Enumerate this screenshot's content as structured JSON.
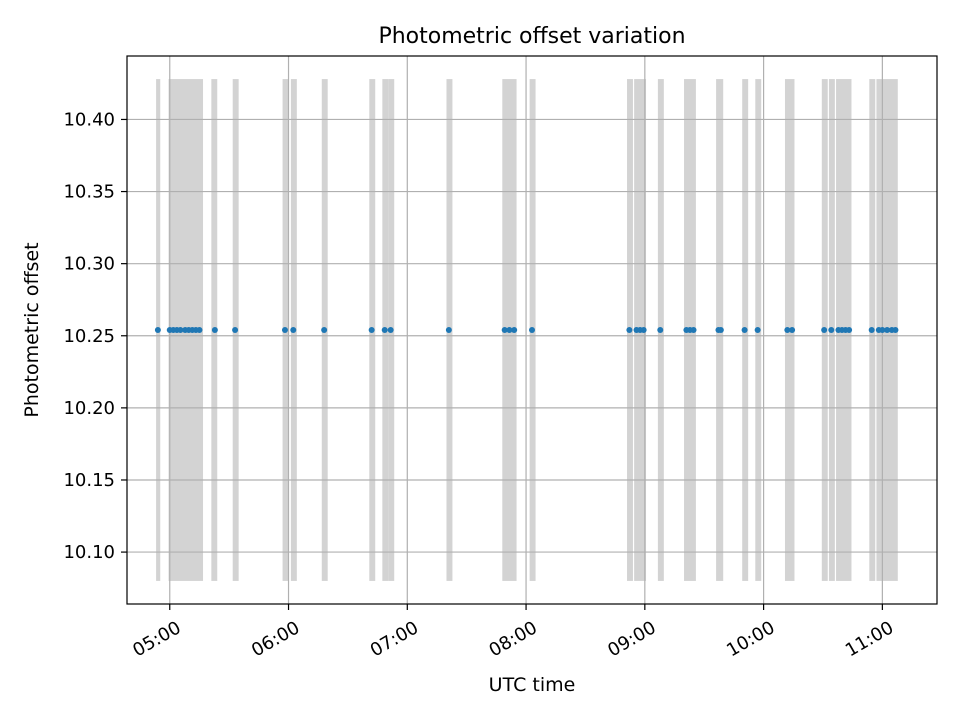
{
  "chart_data": {
    "type": "scatter",
    "title": "Photometric offset variation",
    "xlabel": "UTC time",
    "ylabel": "Photometric offset",
    "x_unit": "hours UTC",
    "xlim": [
      4.64,
      11.46
    ],
    "ylim": [
      10.064,
      10.444
    ],
    "grid": true,
    "x_ticks": [
      {
        "value": 5,
        "label": "05:00"
      },
      {
        "value": 6,
        "label": "06:00"
      },
      {
        "value": 7,
        "label": "07:00"
      },
      {
        "value": 8,
        "label": "08:00"
      },
      {
        "value": 9,
        "label": "09:00"
      },
      {
        "value": 10,
        "label": "10:00"
      },
      {
        "value": 11,
        "label": "11:00"
      }
    ],
    "y_ticks": [
      {
        "value": 10.1,
        "label": "10.10"
      },
      {
        "value": 10.15,
        "label": "10.15"
      },
      {
        "value": 10.2,
        "label": "10.20"
      },
      {
        "value": 10.25,
        "label": "10.25"
      },
      {
        "value": 10.3,
        "label": "10.30"
      },
      {
        "value": 10.35,
        "label": "10.35"
      },
      {
        "value": 10.4,
        "label": "10.40"
      }
    ],
    "series": [
      {
        "color": "#1f77b4",
        "x": [
          4.9,
          5.0,
          5.03,
          5.06,
          5.09,
          5.13,
          5.16,
          5.19,
          5.22,
          5.25,
          5.38,
          5.55,
          5.97,
          6.04,
          6.3,
          6.7,
          6.81,
          6.86,
          7.35,
          7.82,
          7.86,
          7.9,
          8.05,
          8.87,
          8.93,
          8.96,
          8.99,
          9.13,
          9.35,
          9.38,
          9.41,
          9.62,
          9.64,
          9.84,
          9.95,
          10.2,
          10.24,
          10.51,
          10.57,
          10.63,
          10.66,
          10.69,
          10.72,
          10.91,
          10.97,
          11.0,
          11.04,
          11.08,
          11.11
        ],
        "y": [
          10.254,
          10.254,
          10.254,
          10.254,
          10.254,
          10.254,
          10.254,
          10.254,
          10.254,
          10.254,
          10.254,
          10.254,
          10.254,
          10.254,
          10.254,
          10.254,
          10.254,
          10.254,
          10.254,
          10.254,
          10.254,
          10.254,
          10.254,
          10.254,
          10.254,
          10.254,
          10.254,
          10.254,
          10.254,
          10.254,
          10.254,
          10.254,
          10.254,
          10.254,
          10.254,
          10.254,
          10.254,
          10.254,
          10.254,
          10.254,
          10.254,
          10.254,
          10.254,
          10.254,
          10.254,
          10.254,
          10.254,
          10.254,
          10.254
        ]
      }
    ],
    "bands": {
      "color": "#d3d3d3",
      "y_range": [
        10.08,
        10.428
      ],
      "x_ranges": [
        [
          4.885,
          4.92
        ],
        [
          4.99,
          5.28
        ],
        [
          5.35,
          5.4
        ],
        [
          5.53,
          5.58
        ],
        [
          5.95,
          6.0
        ],
        [
          6.02,
          6.07
        ],
        [
          6.28,
          6.33
        ],
        [
          6.68,
          6.73
        ],
        [
          6.79,
          6.84
        ],
        [
          6.84,
          6.89
        ],
        [
          7.33,
          7.38
        ],
        [
          7.8,
          7.92
        ],
        [
          8.03,
          8.08
        ],
        [
          8.85,
          8.9
        ],
        [
          8.91,
          9.01
        ],
        [
          9.11,
          9.16
        ],
        [
          9.33,
          9.43
        ],
        [
          9.6,
          9.66
        ],
        [
          9.82,
          9.87
        ],
        [
          9.93,
          9.98
        ],
        [
          10.18,
          10.26
        ],
        [
          10.49,
          10.54
        ],
        [
          10.55,
          10.6
        ],
        [
          10.61,
          10.74
        ],
        [
          10.89,
          10.94
        ],
        [
          10.95,
          11.13
        ]
      ]
    }
  }
}
